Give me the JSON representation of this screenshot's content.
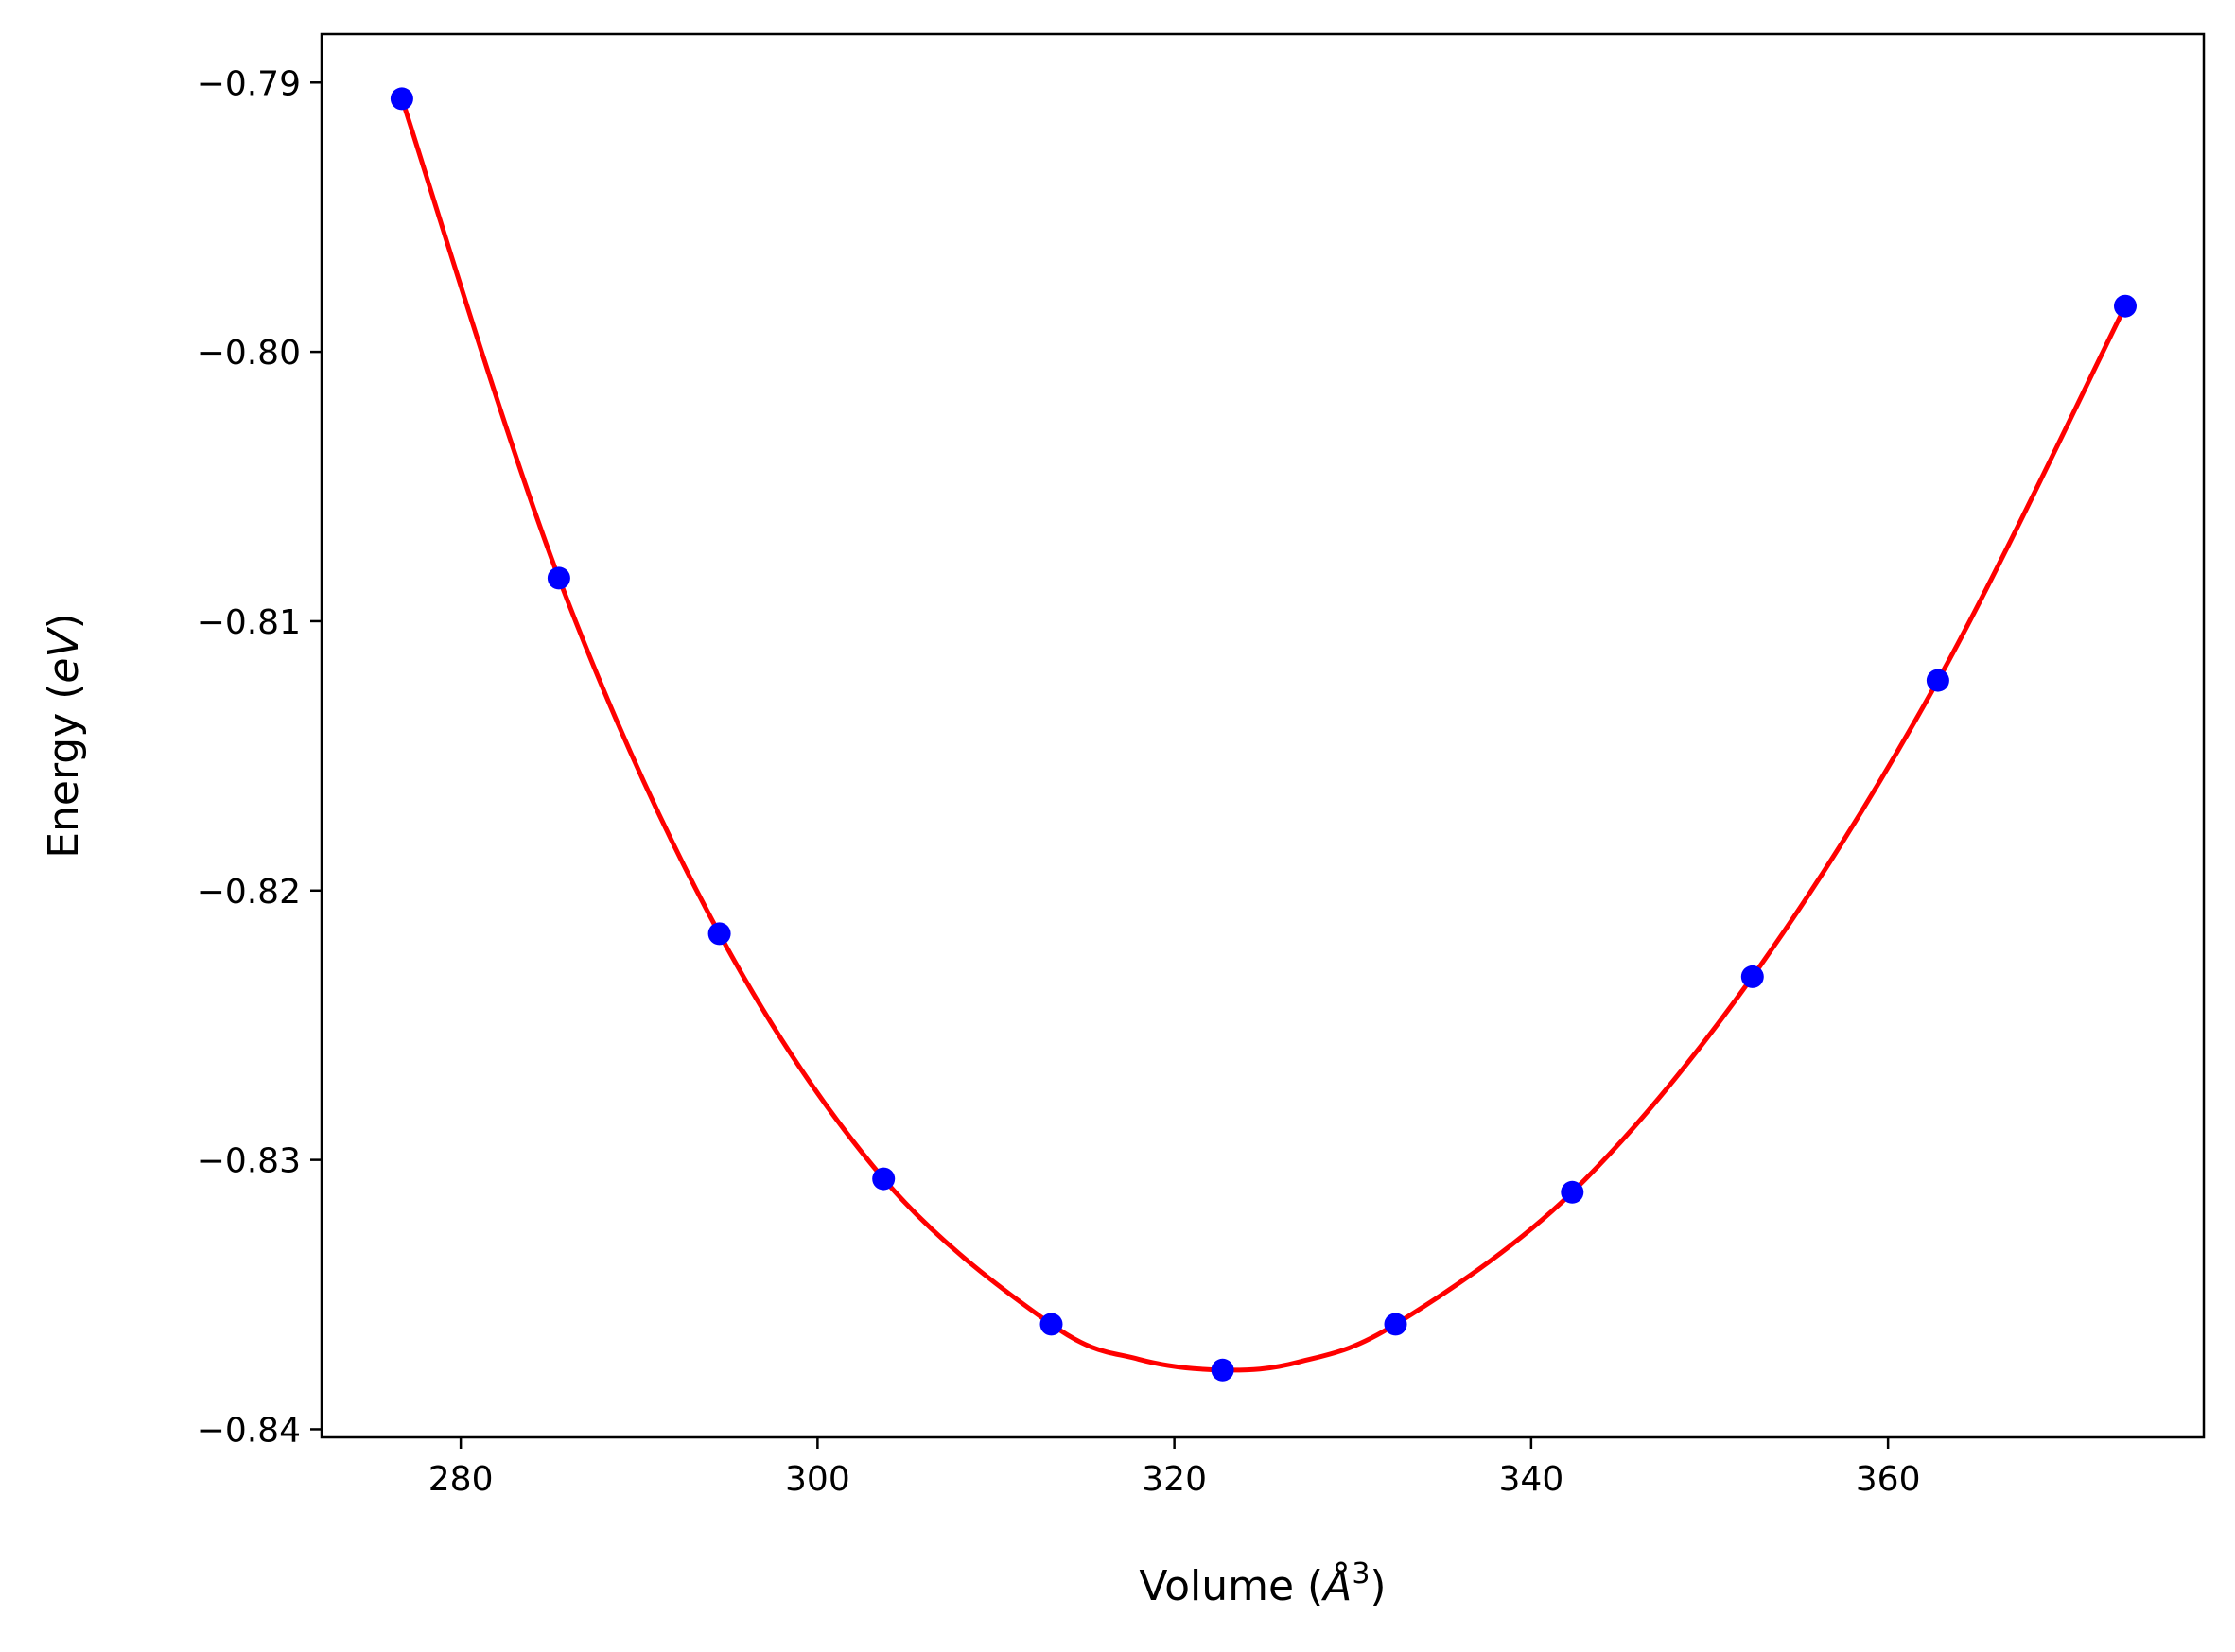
{
  "chart_data": {
    "type": "scatter",
    "xlabel": {
      "main": "Volume (",
      "italic": "Å",
      "sup": "3",
      "end": ")"
    },
    "ylabel": {
      "main": "Energy (",
      "italic": "eV",
      "end": ")"
    },
    "xlim": [
      272.2,
      377.7
    ],
    "ylim": [
      -0.8403,
      -0.7882
    ],
    "xticks": [
      280,
      300,
      320,
      340,
      360
    ],
    "yticks": [
      -0.84,
      -0.83,
      -0.82,
      -0.81,
      -0.8,
      -0.79
    ],
    "xtick_labels": [
      "280",
      "300",
      "320",
      "340",
      "360"
    ],
    "ytick_labels": [
      "−0.84",
      "−0.83",
      "−0.82",
      "−0.81",
      "−0.80",
      "−0.79"
    ],
    "grid": false,
    "series": [
      {
        "kind": "points",
        "color": "#0000ff",
        "x": [
          276.7,
          285.5,
          294.5,
          303.7,
          313.1,
          322.7,
          332.4,
          342.3,
          352.4,
          362.8,
          373.3
        ],
        "y": [
          -0.7906,
          -0.8084,
          -0.8216,
          -0.8307,
          -0.8361,
          -0.8378,
          -0.8361,
          -0.8312,
          -0.8232,
          -0.8122,
          -0.7983
        ]
      },
      {
        "kind": "fit-line",
        "color": "#ff0000",
        "x": [
          276.7,
          285.5,
          294.5,
          303.7,
          313.1,
          318.0,
          322.7,
          327.0,
          332.4,
          342.3,
          352.4,
          362.8,
          373.3
        ],
        "y": [
          -0.7906,
          -0.8084,
          -0.8216,
          -0.8307,
          -0.8361,
          -0.8374,
          -0.8378,
          -0.8375,
          -0.8361,
          -0.8312,
          -0.8232,
          -0.8122,
          -0.7983
        ]
      }
    ]
  }
}
